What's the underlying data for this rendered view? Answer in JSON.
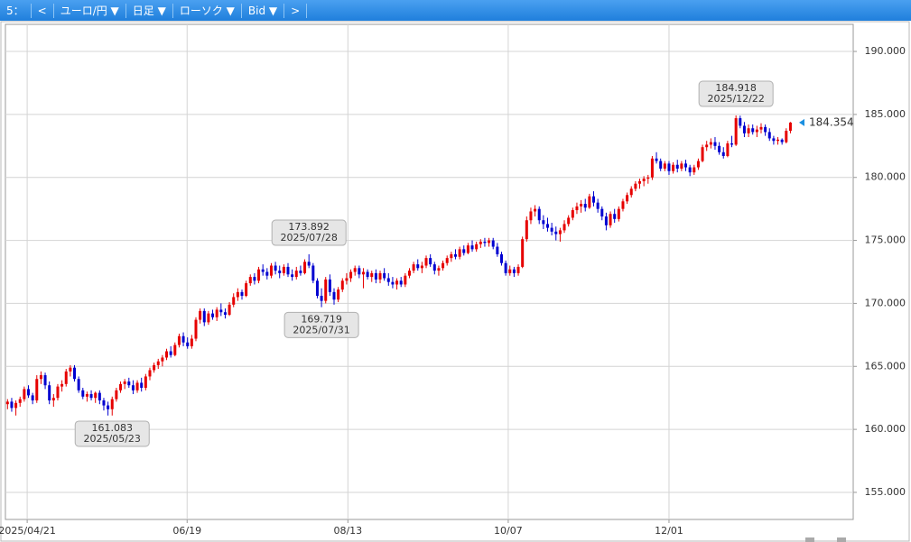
{
  "toolbar": [
    "5：",
    "<",
    "ユーロ/円 ▼",
    "日足 ▼",
    "ローソク ▼",
    "Bid ▼",
    ">"
  ],
  "chart_data": {
    "type": "candlestick",
    "up_color": "#e60000",
    "down_color": "#0000d0",
    "grid": true,
    "xlim": [
      -0.5,
      202
    ],
    "xticks": [
      {
        "value": 4.7,
        "label": "2025/04/21"
      },
      {
        "value": 42.9,
        "label": "06/19"
      },
      {
        "value": 81.3,
        "label": "08/13"
      },
      {
        "value": 119.6,
        "label": "10/07"
      },
      {
        "value": 158.0,
        "label": "12/01"
      }
    ],
    "ylim": [
      152.85,
      192.15
    ],
    "yticks": [
      {
        "value": 155,
        "label": "155.000"
      },
      {
        "value": 160,
        "label": "160.000"
      },
      {
        "value": 165,
        "label": "165.000"
      },
      {
        "value": 170,
        "label": "170.000"
      },
      {
        "value": 175,
        "label": "175.000"
      },
      {
        "value": 180,
        "label": "180.000"
      },
      {
        "value": 185,
        "label": "185.000"
      },
      {
        "value": 190,
        "label": "190.000"
      }
    ],
    "annotations": [
      {
        "x": 25,
        "value": 161.083,
        "label": "161.083",
        "date": "2025/05/23"
      },
      {
        "x": 72,
        "value": 173.892,
        "label": "173.892",
        "date": "2025/07/28"
      },
      {
        "x": 75,
        "value": 169.719,
        "label": "169.719",
        "date": "2025/07/31"
      },
      {
        "x": 174,
        "value": 184.918,
        "label": "184.918",
        "date": "2025/12/22"
      }
    ],
    "last": {
      "value": 184.354,
      "label": "184.354",
      "color": "#1a8fe0"
    },
    "ohlc": [
      [
        162.0,
        162.4,
        161.6,
        162.2
      ],
      [
        162.2,
        162.5,
        161.4,
        161.7
      ],
      [
        161.7,
        162.3,
        161.1,
        162.1
      ],
      [
        162.1,
        162.6,
        161.8,
        162.4
      ],
      [
        162.4,
        163.4,
        162.2,
        163.2
      ],
      [
        163.2,
        163.5,
        162.5,
        162.7
      ],
      [
        162.7,
        162.9,
        162.0,
        162.3
      ],
      [
        162.3,
        164.3,
        162.1,
        164.0
      ],
      [
        164.0,
        164.6,
        163.6,
        164.3
      ],
      [
        164.3,
        164.5,
        163.2,
        163.5
      ],
      [
        163.5,
        163.8,
        162.0,
        162.3
      ],
      [
        162.3,
        162.8,
        161.8,
        162.5
      ],
      [
        162.5,
        163.6,
        162.3,
        163.4
      ],
      [
        163.4,
        163.9,
        163.0,
        163.6
      ],
      [
        163.6,
        164.8,
        163.4,
        164.6
      ],
      [
        164.6,
        165.1,
        164.2,
        164.9
      ],
      [
        164.9,
        165.1,
        163.8,
        164.0
      ],
      [
        164.0,
        164.2,
        162.9,
        163.1
      ],
      [
        163.1,
        163.3,
        162.4,
        162.6
      ],
      [
        162.6,
        163.0,
        162.2,
        162.8
      ],
      [
        162.8,
        163.1,
        162.3,
        162.5
      ],
      [
        162.5,
        163.0,
        162.1,
        162.9
      ],
      [
        162.9,
        163.1,
        162.0,
        162.3
      ],
      [
        162.3,
        162.5,
        161.5,
        161.9
      ],
      [
        161.9,
        162.2,
        161.1,
        161.6
      ],
      [
        161.6,
        162.6,
        161.1,
        162.4
      ],
      [
        162.4,
        163.3,
        162.2,
        163.1
      ],
      [
        163.1,
        163.8,
        162.9,
        163.6
      ],
      [
        163.6,
        164.0,
        163.2,
        163.8
      ],
      [
        163.8,
        164.1,
        163.3,
        163.5
      ],
      [
        163.5,
        163.9,
        162.8,
        163.1
      ],
      [
        163.1,
        163.9,
        162.9,
        163.7
      ],
      [
        163.7,
        164.1,
        163.0,
        163.3
      ],
      [
        163.3,
        164.4,
        163.1,
        164.2
      ],
      [
        164.2,
        164.9,
        163.9,
        164.7
      ],
      [
        164.7,
        165.3,
        164.5,
        165.1
      ],
      [
        165.1,
        165.6,
        164.8,
        165.4
      ],
      [
        165.4,
        165.9,
        165.0,
        165.7
      ],
      [
        165.7,
        166.4,
        165.5,
        166.2
      ],
      [
        166.2,
        166.6,
        165.7,
        165.9
      ],
      [
        165.9,
        166.9,
        165.8,
        166.7
      ],
      [
        166.7,
        167.6,
        166.5,
        167.4
      ],
      [
        167.4,
        167.7,
        166.6,
        166.9
      ],
      [
        166.9,
        167.3,
        166.4,
        166.6
      ],
      [
        166.6,
        167.5,
        166.4,
        167.2
      ],
      [
        167.2,
        168.9,
        167.0,
        168.7
      ],
      [
        168.7,
        169.6,
        168.4,
        169.4
      ],
      [
        169.4,
        169.6,
        168.2,
        168.5
      ],
      [
        168.5,
        169.4,
        168.3,
        169.2
      ],
      [
        169.2,
        169.5,
        168.7,
        168.9
      ],
      [
        168.9,
        169.7,
        168.6,
        169.5
      ],
      [
        169.5,
        170.0,
        169.0,
        169.3
      ],
      [
        169.3,
        169.6,
        168.8,
        169.1
      ],
      [
        169.1,
        170.1,
        169.0,
        169.9
      ],
      [
        169.9,
        170.8,
        169.7,
        170.5
      ],
      [
        170.5,
        171.2,
        170.2,
        170.9
      ],
      [
        170.9,
        171.1,
        170.3,
        170.6
      ],
      [
        170.6,
        171.8,
        170.5,
        171.6
      ],
      [
        171.6,
        172.3,
        171.4,
        172.1
      ],
      [
        172.1,
        172.4,
        171.5,
        171.8
      ],
      [
        171.8,
        172.9,
        171.6,
        172.7
      ],
      [
        172.7,
        173.1,
        172.2,
        172.5
      ],
      [
        172.5,
        172.8,
        171.9,
        172.2
      ],
      [
        172.2,
        173.2,
        172.0,
        173.0
      ],
      [
        173.0,
        173.3,
        172.3,
        172.6
      ],
      [
        172.6,
        173.0,
        172.0,
        172.4
      ],
      [
        172.4,
        173.1,
        172.2,
        172.9
      ],
      [
        172.9,
        173.2,
        172.1,
        172.3
      ],
      [
        172.3,
        172.7,
        171.8,
        172.1
      ],
      [
        172.1,
        172.9,
        171.9,
        172.6
      ],
      [
        172.6,
        173.0,
        172.2,
        172.4
      ],
      [
        172.4,
        173.5,
        172.3,
        173.3
      ],
      [
        173.3,
        173.9,
        172.8,
        173.0
      ],
      [
        173.0,
        173.2,
        171.6,
        171.8
      ],
      [
        171.8,
        172.0,
        170.4,
        170.6
      ],
      [
        170.6,
        171.2,
        169.7,
        170.2
      ],
      [
        170.2,
        172.1,
        170.0,
        171.9
      ],
      [
        171.9,
        172.3,
        170.6,
        170.9
      ],
      [
        170.9,
        171.2,
        169.9,
        170.3
      ],
      [
        170.3,
        171.3,
        170.1,
        171.1
      ],
      [
        171.1,
        172.0,
        170.9,
        171.8
      ],
      [
        171.8,
        172.4,
        171.5,
        172.0
      ],
      [
        172.0,
        172.7,
        171.7,
        172.5
      ],
      [
        172.5,
        173.0,
        172.2,
        172.8
      ],
      [
        172.8,
        173.0,
        172.0,
        172.3
      ],
      [
        172.3,
        172.8,
        171.2,
        172.5
      ],
      [
        172.5,
        172.7,
        171.9,
        172.1
      ],
      [
        172.1,
        172.6,
        171.7,
        172.4
      ],
      [
        172.4,
        172.7,
        171.6,
        171.9
      ],
      [
        171.9,
        172.6,
        171.6,
        172.4
      ],
      [
        172.4,
        172.8,
        171.8,
        172.0
      ],
      [
        172.0,
        172.4,
        171.4,
        171.7
      ],
      [
        171.7,
        172.1,
        171.2,
        171.5
      ],
      [
        171.5,
        172.0,
        171.1,
        171.8
      ],
      [
        171.8,
        172.1,
        171.3,
        171.5
      ],
      [
        171.5,
        172.4,
        171.3,
        172.2
      ],
      [
        172.2,
        172.8,
        172.0,
        172.6
      ],
      [
        172.6,
        173.3,
        172.4,
        173.1
      ],
      [
        173.1,
        173.5,
        172.6,
        172.8
      ],
      [
        172.8,
        173.3,
        172.4,
        173.0
      ],
      [
        173.0,
        173.8,
        172.8,
        173.6
      ],
      [
        173.6,
        173.9,
        172.9,
        173.1
      ],
      [
        173.1,
        173.3,
        172.3,
        172.6
      ],
      [
        172.6,
        173.0,
        172.2,
        172.8
      ],
      [
        172.8,
        173.4,
        172.6,
        173.2
      ],
      [
        173.2,
        173.8,
        173.0,
        173.6
      ],
      [
        173.6,
        174.1,
        173.3,
        173.9
      ],
      [
        173.9,
        174.3,
        173.5,
        173.7
      ],
      [
        173.7,
        174.5,
        173.5,
        174.3
      ],
      [
        174.3,
        174.6,
        173.8,
        174.0
      ],
      [
        174.0,
        174.8,
        173.9,
        174.6
      ],
      [
        174.6,
        175.0,
        174.1,
        174.3
      ],
      [
        174.3,
        174.9,
        174.1,
        174.7
      ],
      [
        174.7,
        175.1,
        174.4,
        174.9
      ],
      [
        174.9,
        175.2,
        174.5,
        174.8
      ],
      [
        174.8,
        175.2,
        174.5,
        175.0
      ],
      [
        175.0,
        175.2,
        174.3,
        174.5
      ],
      [
        174.5,
        174.8,
        173.7,
        173.9
      ],
      [
        173.9,
        174.1,
        173.0,
        173.2
      ],
      [
        173.2,
        173.4,
        172.2,
        172.4
      ],
      [
        172.4,
        173.0,
        172.2,
        172.7
      ],
      [
        172.7,
        172.9,
        172.1,
        172.4
      ],
      [
        172.4,
        173.1,
        172.2,
        172.9
      ],
      [
        172.9,
        175.3,
        172.8,
        175.1
      ],
      [
        175.1,
        176.9,
        174.9,
        176.6
      ],
      [
        176.6,
        177.6,
        176.3,
        177.3
      ],
      [
        177.3,
        177.8,
        176.9,
        177.5
      ],
      [
        177.5,
        177.7,
        176.3,
        176.6
      ],
      [
        176.6,
        177.0,
        175.9,
        176.3
      ],
      [
        176.3,
        176.8,
        175.7,
        176.0
      ],
      [
        176.0,
        176.4,
        175.4,
        175.7
      ],
      [
        175.7,
        176.1,
        175.0,
        175.5
      ],
      [
        175.5,
        176.0,
        174.9,
        175.8
      ],
      [
        175.8,
        176.6,
        175.6,
        176.3
      ],
      [
        176.3,
        177.0,
        176.1,
        176.8
      ],
      [
        176.8,
        177.6,
        176.6,
        177.4
      ],
      [
        177.4,
        178.0,
        177.1,
        177.7
      ],
      [
        177.7,
        178.2,
        177.2,
        177.9
      ],
      [
        177.9,
        178.3,
        177.3,
        177.6
      ],
      [
        177.6,
        178.7,
        177.5,
        178.5
      ],
      [
        178.5,
        178.9,
        177.7,
        178.0
      ],
      [
        178.0,
        178.3,
        177.2,
        177.5
      ],
      [
        177.5,
        177.7,
        176.6,
        176.9
      ],
      [
        176.9,
        177.2,
        175.8,
        176.2
      ],
      [
        176.2,
        177.3,
        176.0,
        177.1
      ],
      [
        177.1,
        177.5,
        176.4,
        176.7
      ],
      [
        176.7,
        177.7,
        176.5,
        177.5
      ],
      [
        177.5,
        178.3,
        177.3,
        178.1
      ],
      [
        178.1,
        178.8,
        177.9,
        178.6
      ],
      [
        178.6,
        179.3,
        178.4,
        179.1
      ],
      [
        179.1,
        179.7,
        178.9,
        179.5
      ],
      [
        179.5,
        179.9,
        179.1,
        179.7
      ],
      [
        179.7,
        180.1,
        179.3,
        179.9
      ],
      [
        179.9,
        180.2,
        179.5,
        180.0
      ],
      [
        180.0,
        181.7,
        179.8,
        181.5
      ],
      [
        181.5,
        182.0,
        181.1,
        181.3
      ],
      [
        181.3,
        181.5,
        180.5,
        180.7
      ],
      [
        180.7,
        181.3,
        180.5,
        181.1
      ],
      [
        181.1,
        181.3,
        180.2,
        180.5
      ],
      [
        180.5,
        181.2,
        180.3,
        181.0
      ],
      [
        181.0,
        181.4,
        180.4,
        180.7
      ],
      [
        180.7,
        181.3,
        180.5,
        181.1
      ],
      [
        181.1,
        181.4,
        180.5,
        180.8
      ],
      [
        180.8,
        181.0,
        180.1,
        180.4
      ],
      [
        180.4,
        181.0,
        180.2,
        180.8
      ],
      [
        180.8,
        181.5,
        180.6,
        181.3
      ],
      [
        181.3,
        182.6,
        181.2,
        182.4
      ],
      [
        182.4,
        182.9,
        182.1,
        182.6
      ],
      [
        182.6,
        183.1,
        182.3,
        182.8
      ],
      [
        182.8,
        183.2,
        182.2,
        182.5
      ],
      [
        182.5,
        182.8,
        181.8,
        182.0
      ],
      [
        182.0,
        182.4,
        181.5,
        181.7
      ],
      [
        181.7,
        182.9,
        181.6,
        182.7
      ],
      [
        182.7,
        183.3,
        182.4,
        182.6
      ],
      [
        182.6,
        184.918,
        182.5,
        184.7
      ],
      [
        184.7,
        184.9,
        183.9,
        184.1
      ],
      [
        184.1,
        184.4,
        183.2,
        183.5
      ],
      [
        183.5,
        184.2,
        183.2,
        183.9
      ],
      [
        183.9,
        184.2,
        183.4,
        183.6
      ],
      [
        183.6,
        184.1,
        183.2,
        183.8
      ],
      [
        183.8,
        184.3,
        183.5,
        184.0
      ],
      [
        184.0,
        184.2,
        183.3,
        183.6
      ],
      [
        183.6,
        183.9,
        182.9,
        183.1
      ],
      [
        183.1,
        183.3,
        182.6,
        182.9
      ],
      [
        182.9,
        183.2,
        182.6,
        183.0
      ],
      [
        183.0,
        183.1,
        182.6,
        182.8
      ],
      [
        182.8,
        183.9,
        182.7,
        183.7
      ],
      [
        183.7,
        184.4,
        183.5,
        184.354
      ]
    ]
  }
}
